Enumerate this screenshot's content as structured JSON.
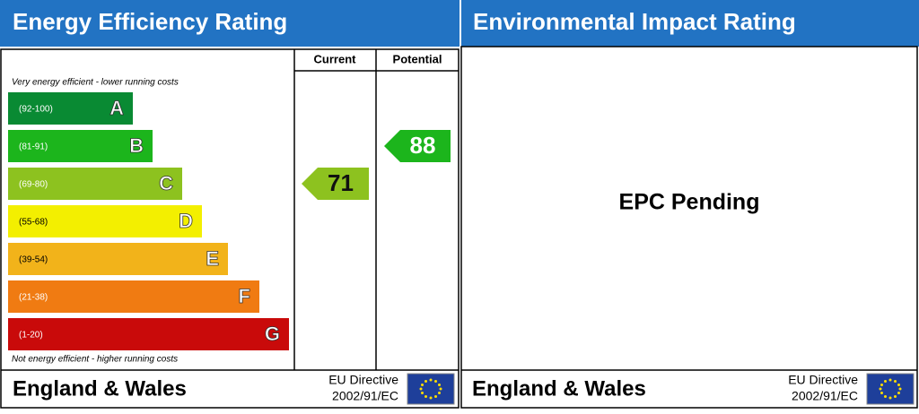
{
  "chart_data": {
    "type": "epc",
    "title": "Energy Efficiency Rating",
    "column_headers": [
      "Current",
      "Potential"
    ],
    "top_note": "Very energy efficient - lower running costs",
    "bottom_note": "Not energy efficient - higher running costs",
    "bands": [
      {
        "letter": "A",
        "range": "(92-100)",
        "min": 92,
        "max": 100,
        "color": "#098a33"
      },
      {
        "letter": "B",
        "range": "(81-91)",
        "min": 81,
        "max": 91,
        "color": "#1cb51c"
      },
      {
        "letter": "C",
        "range": "(69-80)",
        "min": 69,
        "max": 80,
        "color": "#8dc21f"
      },
      {
        "letter": "D",
        "range": "(55-68)",
        "min": 55,
        "max": 68,
        "color": "#f3ef00"
      },
      {
        "letter": "E",
        "range": "(39-54)",
        "min": 39,
        "max": 54,
        "color": "#f2b31a"
      },
      {
        "letter": "F",
        "range": "(21-38)",
        "min": 21,
        "max": 38,
        "color": "#f07b12"
      },
      {
        "letter": "G",
        "range": "(1-20)",
        "min": 1,
        "max": 20,
        "color": "#c90a0a"
      }
    ],
    "current": 71,
    "potential": 88,
    "footer": {
      "region": "England & Wales",
      "directive": "EU Directive",
      "code": "2002/91/EC"
    }
  },
  "environmental": {
    "title": "Environmental Impact Rating",
    "status": "EPC Pending",
    "footer": {
      "region": "England & Wales",
      "directive": "EU Directive",
      "code": "2002/91/EC"
    }
  }
}
